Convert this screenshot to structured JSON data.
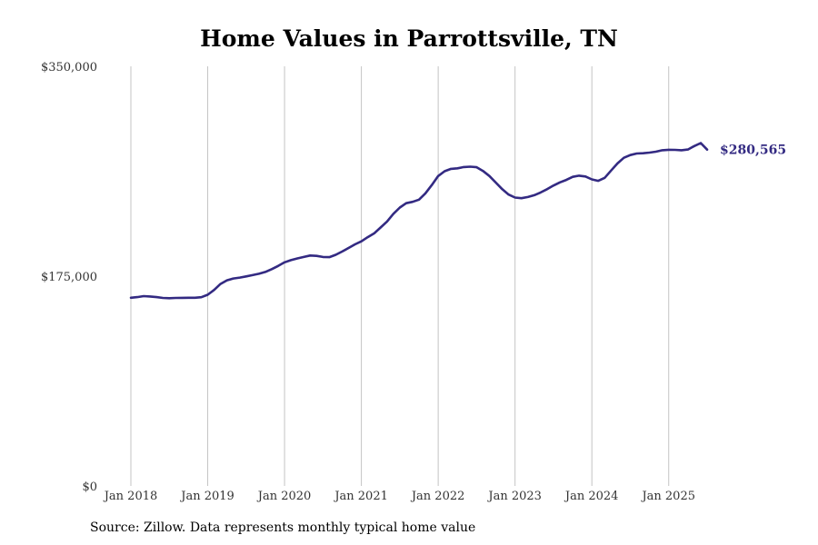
{
  "chart_data": {
    "type": "line",
    "title": "Home Values in Parrottsville, TN",
    "xlabel": "",
    "ylabel": "",
    "x_ticks": [
      "Jan 2018",
      "Jan 2019",
      "Jan 2020",
      "Jan 2021",
      "Jan 2022",
      "Jan 2023",
      "Jan 2024",
      "Jan 2025"
    ],
    "y_ticks": [
      "$0",
      "$175,000",
      "$350,000"
    ],
    "y_tick_values": [
      0,
      175000,
      350000
    ],
    "ylim": [
      0,
      350000
    ],
    "xlim": [
      "2018-01",
      "2025-07"
    ],
    "grid": "vertical at x ticks",
    "line_color": "#332a82",
    "series": [
      {
        "name": "",
        "x": [
          "2018-01",
          "2018-02",
          "2018-03",
          "2018-04",
          "2018-05",
          "2018-06",
          "2018-07",
          "2018-08",
          "2018-09",
          "2018-10",
          "2018-11",
          "2018-12",
          "2019-01",
          "2019-02",
          "2019-03",
          "2019-04",
          "2019-05",
          "2019-06",
          "2019-07",
          "2019-08",
          "2019-09",
          "2019-10",
          "2019-11",
          "2019-12",
          "2020-01",
          "2020-02",
          "2020-03",
          "2020-04",
          "2020-05",
          "2020-06",
          "2020-07",
          "2020-08",
          "2020-09",
          "2020-10",
          "2020-11",
          "2020-12",
          "2021-01",
          "2021-02",
          "2021-03",
          "2021-04",
          "2021-05",
          "2021-06",
          "2021-07",
          "2021-08",
          "2021-09",
          "2021-10",
          "2021-11",
          "2021-12",
          "2022-01",
          "2022-02",
          "2022-03",
          "2022-04",
          "2022-05",
          "2022-06",
          "2022-07",
          "2022-08",
          "2022-09",
          "2022-10",
          "2022-11",
          "2022-12",
          "2023-01",
          "2023-02",
          "2023-03",
          "2023-04",
          "2023-05",
          "2023-06",
          "2023-07",
          "2023-08",
          "2023-09",
          "2023-10",
          "2023-11",
          "2023-12",
          "2024-01",
          "2024-02",
          "2024-03",
          "2024-04",
          "2024-05",
          "2024-06",
          "2024-07",
          "2024-08",
          "2024-09",
          "2024-10",
          "2024-11",
          "2024-12",
          "2025-01",
          "2025-02",
          "2025-03",
          "2025-04",
          "2025-05",
          "2025-06",
          "2025-07"
        ],
        "values": [
          157000,
          157500,
          158300,
          158000,
          157500,
          156800,
          156600,
          156800,
          156900,
          157000,
          157000,
          157400,
          159500,
          163500,
          168500,
          171500,
          173000,
          173800,
          174800,
          175800,
          177000,
          178500,
          180800,
          183500,
          186500,
          188300,
          189800,
          191000,
          192200,
          191900,
          191000,
          190800,
          192800,
          195500,
          198500,
          201500,
          204000,
          207500,
          210700,
          215500,
          220500,
          227000,
          232200,
          235800,
          237000,
          238800,
          244000,
          251000,
          258500,
          262500,
          264500,
          264900,
          266000,
          266300,
          265800,
          262700,
          258500,
          253000,
          247500,
          243000,
          240500,
          240000,
          241000,
          242500,
          244800,
          247500,
          250500,
          253200,
          255200,
          257800,
          258800,
          258100,
          255700,
          254500,
          257000,
          263000,
          269000,
          273700,
          276000,
          277300,
          277500,
          278000,
          278800,
          280000,
          280400,
          280300,
          280000,
          280600,
          283500,
          286000,
          280565
        ]
      }
    ],
    "end_label": "$280,565"
  },
  "source": "Source: Zillow. Data represents monthly typical home value"
}
